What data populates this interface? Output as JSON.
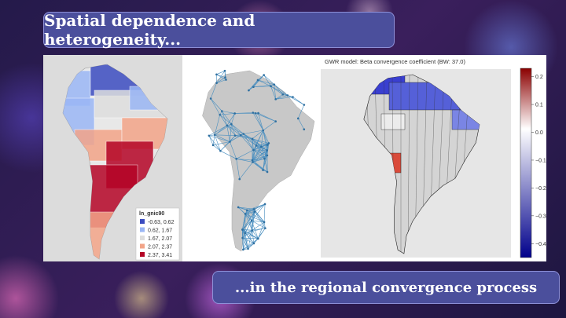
{
  "header": {
    "title": "Spatial dependence and heterogeneity..."
  },
  "footer": {
    "title": "...in the regional convergence process"
  },
  "left_map": {
    "legend": {
      "title": "ln_gnic90",
      "entries": [
        {
          "label": "-0.63, 0.62",
          "color": "#3b4cc0"
        },
        {
          "label": "0.62, 1.67",
          "color": "#9bb7f5"
        },
        {
          "label": "1.67, 2.07",
          "color": "#dddddd"
        },
        {
          "label": "2.07, 2.37",
          "color": "#f2a488"
        },
        {
          "label": "2.37, 3.41",
          "color": "#b40426"
        }
      ]
    }
  },
  "right_map": {
    "title": "GWR model: Beta convergence coefficient (BW: 37.0)",
    "colorbar": {
      "range": [
        -0.45,
        0.23
      ],
      "ticks": [
        0.2,
        0.1,
        {
          "value": 0,
          "label": "0.0"
        },
        {
          "value": -0.1,
          "label": "−0.1"
        },
        {
          "value": -0.2,
          "label": "−0.2"
        },
        {
          "value": -0.3,
          "label": "−0.3"
        },
        {
          "value": -0.4,
          "label": "−0.4"
        }
      ]
    }
  }
}
